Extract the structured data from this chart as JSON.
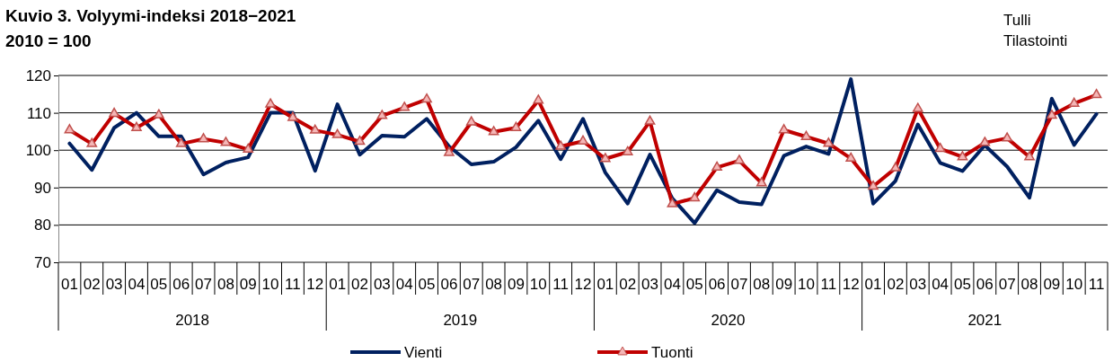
{
  "chart_data": {
    "type": "line",
    "title": "Kuvio 3. Volyymi-indeksi 2018−2021",
    "subtitle": "2010 = 100",
    "categories": [
      "01",
      "02",
      "03",
      "04",
      "05",
      "06",
      "07",
      "08",
      "09",
      "10",
      "11",
      "12",
      "01",
      "02",
      "03",
      "04",
      "05",
      "06",
      "07",
      "08",
      "09",
      "10",
      "11",
      "12",
      "01",
      "02",
      "03",
      "04",
      "05",
      "06",
      "07",
      "08",
      "09",
      "10",
      "11",
      "12",
      "01",
      "02",
      "03",
      "04",
      "05",
      "06",
      "07",
      "08",
      "09",
      "10",
      "11"
    ],
    "series": [
      {
        "name": "Vienti",
        "color": "#002060",
        "marker": "none",
        "values": [
          101.8,
          94.7,
          106,
          110,
          103.7,
          103.7,
          93.5,
          96.7,
          98.1,
          110,
          110,
          94.5,
          112.3,
          98.8,
          103.9,
          103.6,
          108.4,
          101,
          96.2,
          96.9,
          100.8,
          107.9,
          97.6,
          108.4,
          94,
          85.7,
          98.8,
          87.1,
          80.5,
          89.3,
          86.1,
          85.5,
          98.5,
          101,
          99,
          119,
          85.7,
          91.8,
          106.9,
          96.6,
          94.4,
          101.3,
          95.6,
          87.3,
          113.8,
          101.4,
          109.7
        ]
      },
      {
        "name": "Tuonti",
        "color": "#c00000",
        "marker": "triangle",
        "values": [
          105.4,
          101.7,
          109.8,
          106,
          109.4,
          101.7,
          103,
          102,
          100.2,
          112.3,
          108.7,
          105.3,
          104.1,
          102.3,
          109.2,
          111.4,
          113.6,
          99.3,
          107.5,
          104.9,
          106,
          113.3,
          101,
          102.4,
          97.7,
          99.5,
          107.7,
          85.6,
          87.2,
          95.4,
          97.2,
          91.2,
          105.4,
          103.6,
          101.8,
          97.8,
          90.3,
          95.2,
          111.1,
          100.4,
          98.2,
          102,
          103.2,
          98.2,
          109.3,
          112.5,
          114.8
        ]
      }
    ],
    "ylim": [
      70,
      120
    ],
    "yticks": [
      70,
      80,
      90,
      100,
      110,
      120
    ],
    "grid": "y",
    "legend": "bottom",
    "annotations": [
      "Tulli",
      "Tilastointi",
      "2018",
      "2019",
      "2020",
      "2021"
    ]
  }
}
